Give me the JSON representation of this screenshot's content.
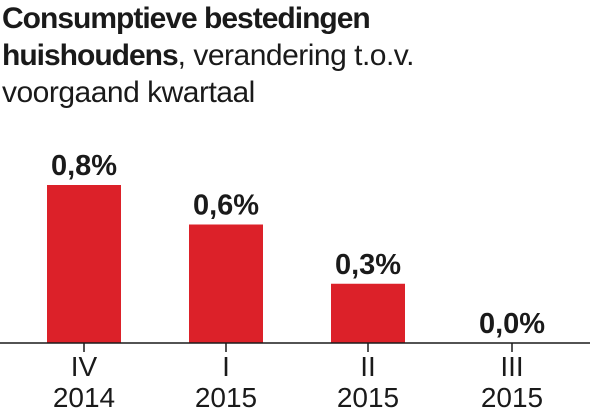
{
  "header": {
    "title_bold_1": "Consumptieve bestedingen",
    "title_bold_2": "huishoudens",
    "title_rest": ", verandering  t.o.v.",
    "subtitle_line3": "voorgaand kwartaal"
  },
  "chart_data": {
    "type": "bar",
    "title": "Consumptieve bestedingen huishoudens, verandering t.o.v. voorgaand kwartaal",
    "categories": [
      {
        "line1": "IV",
        "line2": "2014"
      },
      {
        "line1": "I",
        "line2": "2015"
      },
      {
        "line1": "II",
        "line2": "2015"
      },
      {
        "line1": "III",
        "line2": "2015"
      }
    ],
    "values": [
      0.8,
      0.6,
      0.3,
      0.0
    ],
    "value_labels": [
      "0,8%",
      "0,6%",
      "0,3%",
      "0,0%"
    ],
    "unit": "%",
    "ylim": [
      0,
      0.8
    ],
    "bar_color": "#dc2129",
    "axis_color": "#1a1a1a",
    "grid": false,
    "legend": "none"
  }
}
